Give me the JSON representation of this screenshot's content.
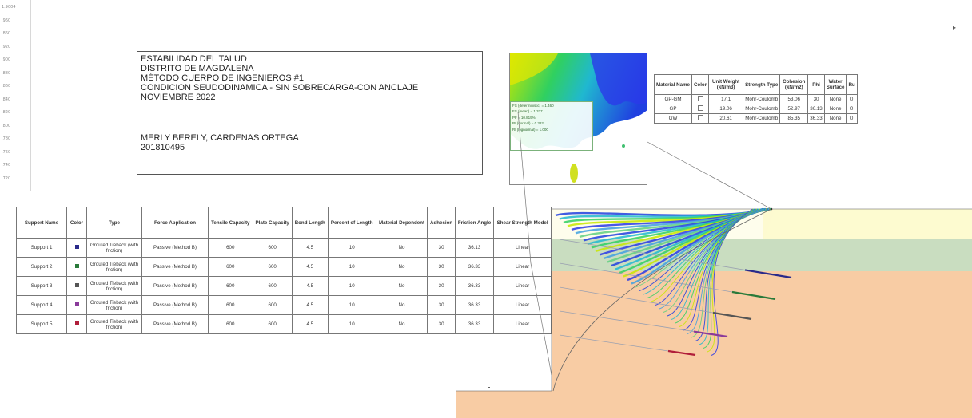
{
  "ruler": {
    "ticks": [
      "1.9004",
      ".960",
      ".860",
      ".920",
      ".900",
      ".880",
      ".860",
      ".840",
      ".820",
      ".800",
      ".780",
      ".760",
      ".740",
      ".720"
    ]
  },
  "title_block": {
    "lines": [
      "ESTABILIDAD DEL TALUD",
      "DISTRITO DE MAGDALENA",
      "MÉTODO CUERPO DE INGENIEROS #1",
      "CONDICION SEUDODINAMICA - SIN SOBRECARGA-CON ANCLAJE",
      "NOVIEMBRE 2022"
    ],
    "author": "MERLY BERELY, CARDENAS ORTEGA",
    "code": "201810495"
  },
  "probe": {
    "lines": [
      "FS (deterministic) = 1.460",
      "FS (mean) = 1.327",
      "PF = 10.819%",
      "RI (normal) = 0.382",
      "RI (lognormal) = 1.000"
    ]
  },
  "material_table": {
    "headers": [
      "Material Name",
      "Color",
      "Unit Weight (kN/m3)",
      "Strength Type",
      "Cohesion (kN/m2)",
      "Phi",
      "Water Surface",
      "Ru"
    ],
    "rows": [
      {
        "name": "GP-GM",
        "color": "#ffffff",
        "unit_weight": "17.1",
        "strength_type": "Mohr-Coulomb",
        "cohesion": "53.06",
        "phi": "30",
        "water": "None",
        "ru": "0"
      },
      {
        "name": "GP",
        "color": "#ffffff",
        "unit_weight": "19.06",
        "strength_type": "Mohr-Coulomb",
        "cohesion": "52.97",
        "phi": "36.13",
        "water": "None",
        "ru": "0"
      },
      {
        "name": "GW",
        "color": "#ffffff",
        "unit_weight": "20.61",
        "strength_type": "Mohr-Coulomb",
        "cohesion": "85.35",
        "phi": "36.33",
        "water": "None",
        "ru": "0"
      }
    ]
  },
  "support_table": {
    "headers": [
      "Support Name",
      "Color",
      "Type",
      "Force Application",
      "Tensile Capacity",
      "Plate Capacity",
      "Bond Length",
      "Percent of Length",
      "Material Dependent",
      "Adhesion",
      "Friction Angle",
      "Shear Strength Model"
    ],
    "rows": [
      {
        "name": "Support 1",
        "color": "#2a2a8a",
        "type": "Grouted Tieback (with friction)",
        "force": "Passive (Method B)",
        "tensile": "600",
        "plate": "600",
        "bond": "4.5",
        "percent": "10",
        "dependent": "No",
        "adhesion": "30",
        "friction": "36.13",
        "model": "Linear"
      },
      {
        "name": "Support 2",
        "color": "#2a7a3a",
        "type": "Grouted Tieback (with friction)",
        "force": "Passive (Method B)",
        "tensile": "600",
        "plate": "600",
        "bond": "4.5",
        "percent": "10",
        "dependent": "No",
        "adhesion": "30",
        "friction": "36.33",
        "model": "Linear"
      },
      {
        "name": "Support 3",
        "color": "#555555",
        "type": "Grouted Tieback (with friction)",
        "force": "Passive (Method B)",
        "tensile": "600",
        "plate": "600",
        "bond": "4.5",
        "percent": "10",
        "dependent": "No",
        "adhesion": "30",
        "friction": "36.33",
        "model": "Linear"
      },
      {
        "name": "Support 4",
        "color": "#8a3a9a",
        "type": "Grouted Tieback (with friction)",
        "force": "Passive (Method B)",
        "tensile": "600",
        "plate": "600",
        "bond": "4.5",
        "percent": "10",
        "dependent": "No",
        "adhesion": "30",
        "friction": "36.33",
        "model": "Linear"
      },
      {
        "name": "Support 5",
        "color": "#b01e3a",
        "type": "Grouted Tieback (with friction)",
        "force": "Passive (Method B)",
        "tensile": "600",
        "plate": "600",
        "bond": "4.5",
        "percent": "10",
        "dependent": "No",
        "adhesion": "30",
        "friction": "36.33",
        "model": "Linear"
      }
    ]
  },
  "colors": {
    "layer_top": "#fdfbd0",
    "layer_mid": "#c9ddc0",
    "layer_bottom": "#f8cca4",
    "anchor": "#3a5a8a"
  },
  "corner_glyph": "▸"
}
